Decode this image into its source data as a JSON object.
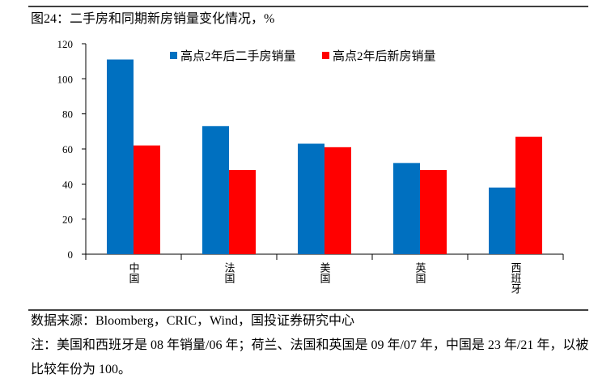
{
  "chart_data": {
    "type": "bar",
    "title": "图24：二手房和同期新房销量变化情况，%",
    "categories": [
      "中国",
      "法国",
      "美国",
      "英国",
      "西班牙"
    ],
    "series": [
      {
        "name": "高点2年后二手房销量",
        "color": "#0070c0",
        "values": [
          111,
          73,
          63,
          52,
          38
        ]
      },
      {
        "name": "高点2年后新房销量",
        "color": "#ff0000",
        "values": [
          62,
          48,
          61,
          48,
          67
        ]
      }
    ],
    "ylim": [
      0,
      120
    ],
    "yticks": [
      0,
      20,
      40,
      60,
      80,
      100,
      120
    ],
    "source": "数据来源：Bloomberg，CRIC，Wind，国投证券研究中心",
    "note": "注：美国和西班牙是 08 年销量/06 年；荷兰、法国和英国是 09 年/07 年，中国是 23 年/21 年，以被比较年份为 100。"
  }
}
